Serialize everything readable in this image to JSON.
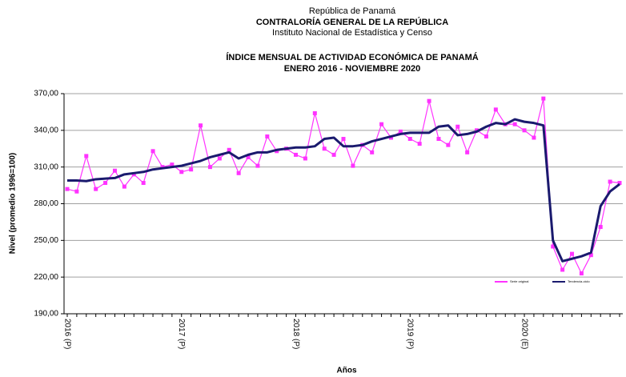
{
  "chart_data": {
    "type": "line",
    "header": [
      "República de Panamá",
      "CONTRALORÍA GENERAL DE LA REPÚBLICA",
      "Instituto Nacional de Estadística y Censo"
    ],
    "title": "ÍNDICE MENSUAL DE ACTIVIDAD ECONÓMICA DE PANAMÁ",
    "subtitle": "ENERO 2016 -  NOVIEMBRE 2020",
    "y_label": "Nivel (promedio 1996=100)",
    "x_label": "Años",
    "categories": [
      "2016 (P)",
      null,
      null,
      null,
      null,
      null,
      null,
      null,
      null,
      null,
      null,
      null,
      "2017 (P)",
      null,
      null,
      null,
      null,
      null,
      null,
      null,
      null,
      null,
      null,
      null,
      "2018 (P)",
      null,
      null,
      null,
      null,
      null,
      null,
      null,
      null,
      null,
      null,
      null,
      "2019 (P)",
      null,
      null,
      null,
      null,
      null,
      null,
      null,
      null,
      null,
      null,
      null,
      "2020 (E)",
      null,
      null,
      null,
      null,
      null,
      null,
      null,
      null,
      null,
      null
    ],
    "series": [
      {
        "name": "Serie original",
        "color": "#ff33ff",
        "markers": true,
        "values": [
          292,
          290,
          319,
          292,
          297,
          307,
          294,
          304,
          297,
          323,
          310,
          312,
          306,
          308,
          344,
          310,
          317,
          324,
          305,
          318,
          311,
          335,
          323,
          325,
          320,
          317,
          354,
          325,
          320,
          333,
          311,
          328,
          322,
          345,
          334,
          339,
          333,
          329,
          364,
          333,
          328,
          343,
          322,
          340,
          335,
          357,
          345,
          345,
          340,
          334,
          366,
          245,
          226,
          239,
          223,
          238,
          261,
          298,
          297
        ]
      },
      {
        "name": "Tendencia-ciclo",
        "color": "#1a1a6e",
        "markers": false,
        "values": [
          299,
          299,
          298.5,
          300,
          300.5,
          301,
          304,
          305,
          306,
          308,
          309,
          310,
          311,
          313,
          315,
          318,
          320,
          322,
          317,
          320,
          322,
          322,
          324,
          325,
          326,
          326,
          327,
          333,
          334,
          327,
          327,
          328,
          331,
          333,
          335,
          337,
          338,
          338,
          338,
          343,
          344,
          336,
          337,
          339,
          343,
          346,
          345,
          349,
          347,
          346,
          344,
          250,
          233,
          235,
          237,
          240,
          278,
          290,
          296
        ]
      }
    ],
    "ylim": [
      190,
      370
    ],
    "yticks": [
      {
        "value": 190,
        "label": "190,00"
      },
      {
        "value": 220,
        "label": "220,00"
      },
      {
        "value": 250,
        "label": "250,00"
      },
      {
        "value": 280,
        "label": "280,00"
      },
      {
        "value": 310,
        "label": "310,00"
      },
      {
        "value": 340,
        "label": "340,00"
      },
      {
        "value": 370,
        "label": "370,00"
      }
    ],
    "grid": true,
    "legend": "lower right"
  }
}
